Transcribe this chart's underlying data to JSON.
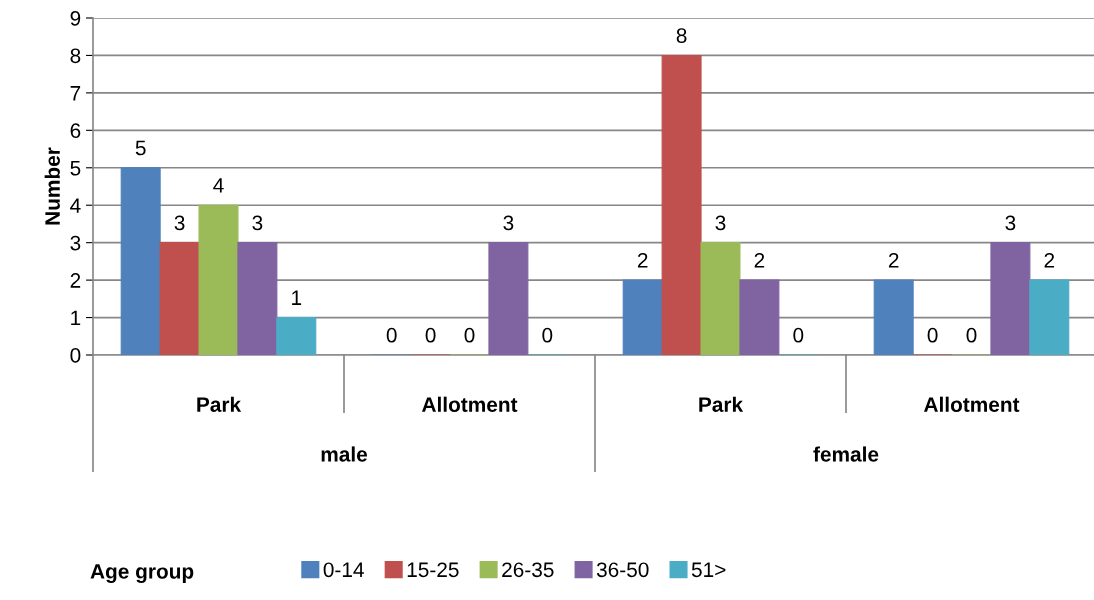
{
  "chart_data": {
    "type": "bar",
    "ylabel": "Number",
    "legend_title": "Age group",
    "categories": [
      "Park",
      "Allotment",
      "Park",
      "Allotment"
    ],
    "annotations": [
      "male",
      "female"
    ],
    "series": [
      {
        "name": "0-14",
        "color": "#4f81bd",
        "values": [
          5,
          0,
          2,
          2
        ]
      },
      {
        "name": "15-25",
        "color": "#c0504d",
        "values": [
          3,
          0,
          8,
          0
        ]
      },
      {
        "name": "26-35",
        "color": "#9bbb59",
        "values": [
          4,
          0,
          3,
          0
        ]
      },
      {
        "name": "36-50",
        "color": "#8064a2",
        "values": [
          3,
          3,
          2,
          3
        ]
      },
      {
        "name": "51>",
        "color": "#4bacc6",
        "values": [
          1,
          0,
          0,
          2
        ]
      }
    ],
    "ylim": [
      0,
      9
    ],
    "yticks": [
      0,
      1,
      2,
      3,
      4,
      5,
      6,
      7,
      8,
      9
    ],
    "grid": "y",
    "legend": "bottom",
    "data_labels": true
  }
}
